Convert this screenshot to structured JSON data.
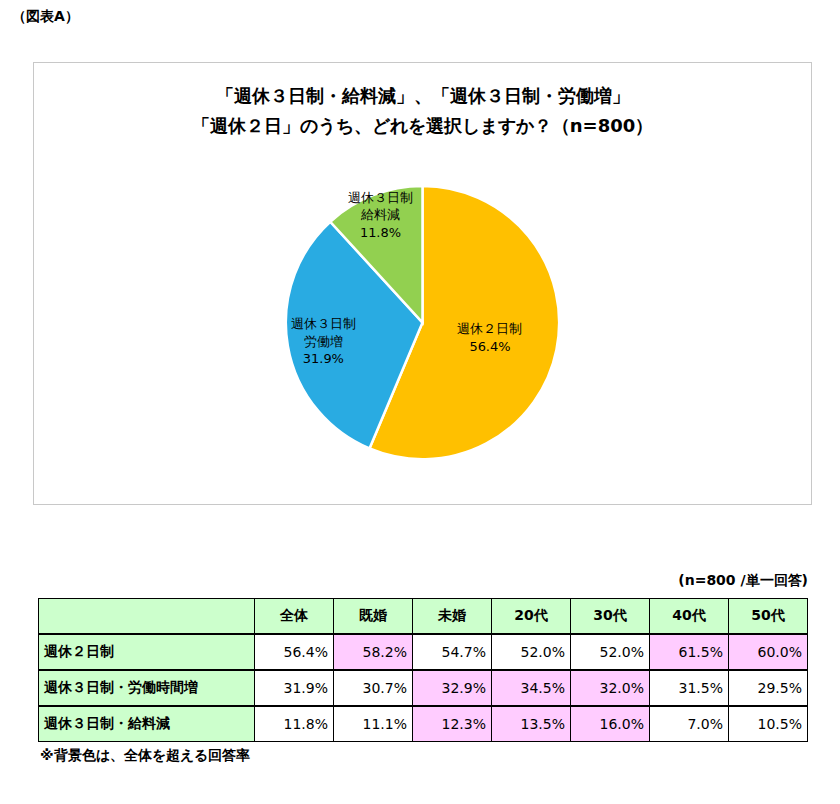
{
  "figure_label": "（図表A）",
  "chart_data": {
    "type": "pie",
    "title": "「週休３日制・給料減」、「週休３日制・労働増」\n「週休２日」のうち、どれを選択しますか？（n=800）",
    "categories": [
      "週休２日制",
      "週休３日制\n労働増",
      "週休３日制\n給料減"
    ],
    "values": [
      56.4,
      31.9,
      11.8
    ],
    "value_labels": [
      "56.4%",
      "31.9%",
      "11.8%"
    ],
    "colors": [
      "#ffc000",
      "#29abe2",
      "#92d050"
    ],
    "data_labels": true
  },
  "table": {
    "note": "(n=800 /単一回答)",
    "header": [
      "",
      "全体",
      "既婚",
      "未婚",
      "20代",
      "30代",
      "40代",
      "50代"
    ],
    "rows": [
      {
        "label": "週休２日制",
        "cells": [
          "56.4%",
          "58.2%",
          "54.7%",
          "52.0%",
          "52.0%",
          "61.5%",
          "60.0%"
        ],
        "highlight": [
          false,
          true,
          false,
          false,
          false,
          true,
          true
        ]
      },
      {
        "label": "週休３日制・労働時間増",
        "cells": [
          "31.9%",
          "30.7%",
          "32.9%",
          "34.5%",
          "32.0%",
          "31.5%",
          "29.5%"
        ],
        "highlight": [
          false,
          false,
          true,
          true,
          true,
          false,
          false
        ]
      },
      {
        "label": "週休３日制・給料減",
        "cells": [
          "11.8%",
          "11.1%",
          "12.3%",
          "13.5%",
          "16.0%",
          "7.0%",
          "10.5%"
        ],
        "highlight": [
          false,
          false,
          true,
          true,
          true,
          false,
          false
        ]
      }
    ],
    "footnote": "※背景色は、全体を超える回答率"
  }
}
